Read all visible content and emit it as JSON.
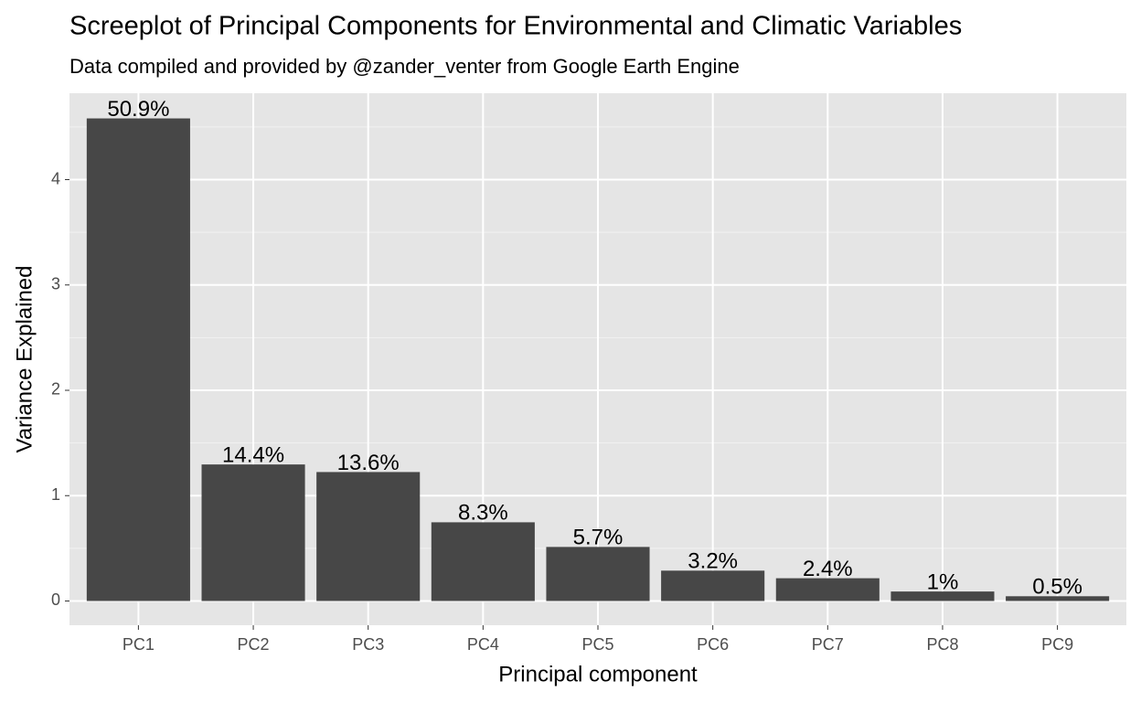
{
  "chart_data": {
    "type": "bar",
    "title": "Screeplot of Principal Components for Environmental and Climatic Variables",
    "subtitle": "Data compiled and provided by @zander_venter from Google Earth Engine",
    "x_label": "Principal component",
    "y_label": "Variance Explained",
    "categories": [
      "PC1",
      "PC2",
      "PC3",
      "PC4",
      "PC5",
      "PC6",
      "PC7",
      "PC8",
      "PC9"
    ],
    "values": [
      4.581,
      1.296,
      1.224,
      0.747,
      0.513,
      0.288,
      0.216,
      0.09,
      0.045
    ],
    "value_labels": [
      "50.9%",
      "14.4%",
      "13.6%",
      "8.3%",
      "5.7%",
      "3.2%",
      "2.4%",
      "1%",
      "0.5%"
    ],
    "color": "#474747",
    "ylim": [
      -0.23,
      4.82
    ],
    "yticks": [
      0,
      1,
      2,
      3,
      4
    ],
    "grid": true
  }
}
